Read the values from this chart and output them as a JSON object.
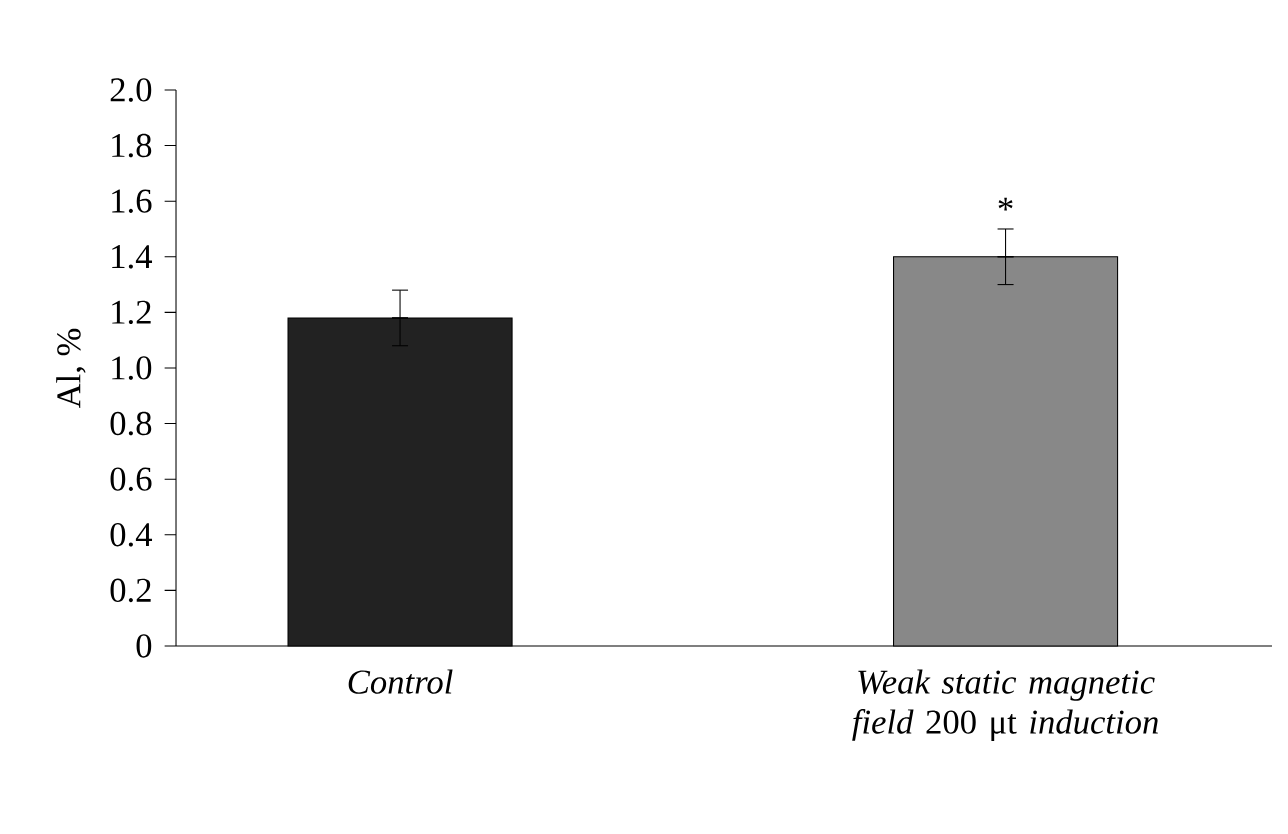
{
  "chart_data": {
    "type": "bar",
    "ylabel": "Al, %",
    "categories": [
      "*Control*",
      "*Weak static magnetic field* 200 μt *induction*"
    ],
    "values": [
      1.18,
      1.4
    ],
    "colors": [
      "#222222",
      "#888888"
    ],
    "errors": [
      0.1,
      0.1
    ],
    "ylim": [
      0,
      2.0
    ],
    "yticks": [
      0,
      0.2,
      0.4,
      0.6,
      0.8,
      {
        "value": 1.0,
        "label": "1.0"
      },
      1.2,
      1.4,
      1.6,
      1.8,
      {
        "value": 2.0,
        "label": "2.0"
      }
    ],
    "annotations": [
      "*"
    ],
    "grid": false
  }
}
